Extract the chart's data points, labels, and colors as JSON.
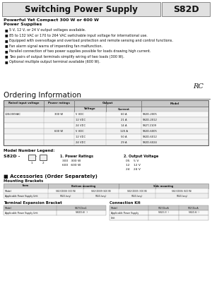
{
  "title": "Switching Power Supply",
  "model": "S82D",
  "subtitle": "Powerful Yet Compact 300 W or 600 W\nPower Supplies",
  "bullets": [
    "5 V, 12 V, or 24 V output voltages available.",
    "85 to 132 VAC or 170 to 264 VAC switchable input voltage for international use.",
    "Equipped with overvoltage and overload protection and remote sensing and control functions.",
    "Fan alarm signal warns of impending fan malfunction.",
    "Parallel connection of two power supplies possible for loads drawing high current.",
    "Two pairs of output terminals simplify wiring of two loads (300 W).",
    "Optional multiple output terminal available (600 W)."
  ],
  "table_rows": [
    [
      "100/200VAC",
      "300 W",
      "5 VDC",
      "60 A",
      "S82D-2005"
    ],
    [
      "",
      "",
      "12 VDC",
      "21 A",
      "S82D-2012"
    ],
    [
      "",
      "",
      "24 VDC",
      "14 A",
      "S82T-2109"
    ],
    [
      "",
      "600 W",
      "5 VDC",
      "120 A",
      "S82D-6005"
    ],
    [
      "",
      "",
      "12 VDC",
      "50 A",
      "S82D-6012"
    ],
    [
      "",
      "",
      "24 VDC",
      "29 A",
      "S82D-6024"
    ]
  ],
  "legend_power_items": [
    "300   300 W",
    "600   600 W"
  ],
  "legend_voltage_items": [
    "05    5 V",
    "12    12 V",
    "24    24 V"
  ],
  "mount_rows": [
    [
      "Model",
      "S82Y-D008 (300 W)",
      "S82Y-D009 (600 W)",
      "S82Y-D005 (300 W)",
      "S82Y-D006 (600 W)"
    ],
    [
      "Applicable Power Supply Unit",
      "S82D-(any)",
      "S82D-(any)",
      "S82D-(any)",
      "S82D-(any)"
    ]
  ],
  "term_rows": [
    [
      "Model",
      "S82Y-Dex1"
    ],
    [
      "Applicable Power Supply Unit",
      "S82D-6(  )"
    ]
  ],
  "conn_rows": [
    [
      "Model",
      "S82Y-DxxA",
      "S82Y-DxxA"
    ],
    [
      "Applicable Power Supply",
      "S82D-3(  )",
      "S82D-6(  )"
    ],
    [
      "Unit",
      "",
      ""
    ]
  ],
  "bg": "#ffffff",
  "hdr_bg": "#e0e0e0",
  "tbl_hdr_bg": "#c8c8c8",
  "tbl_sub_bg": "#d8d8d8",
  "row_bg0": "#f8f8f8",
  "row_bg1": "#efefef",
  "tc": "#111111"
}
